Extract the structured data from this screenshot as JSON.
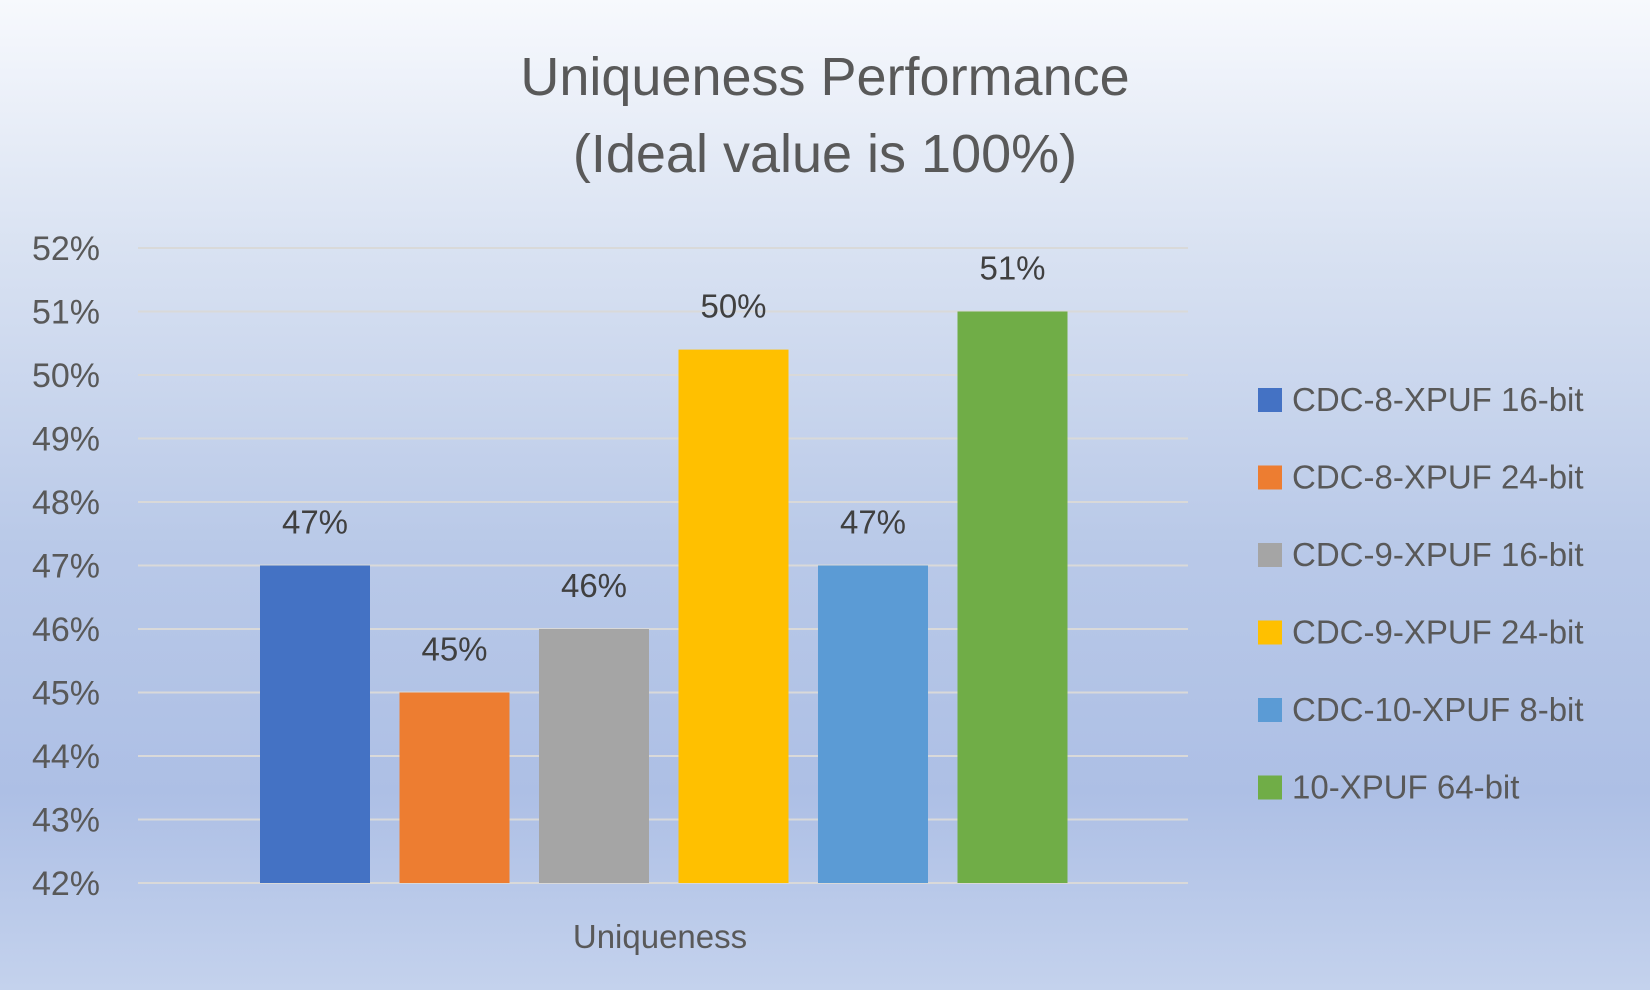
{
  "chart_data": {
    "type": "bar",
    "title": "Uniqueness Performance",
    "subtitle": "(Ideal value is 100%)",
    "categories": [
      "Uniqueness"
    ],
    "ylim": [
      42,
      52
    ],
    "y_ticks": [
      "42%",
      "43%",
      "44%",
      "45%",
      "46%",
      "47%",
      "48%",
      "49%",
      "50%",
      "51%",
      "52%"
    ],
    "grid": true,
    "legend_position": "right",
    "series": [
      {
        "name": "CDC-8-XPUF 16-bit",
        "values": [
          47
        ],
        "label": "47%",
        "color": "#4472c4"
      },
      {
        "name": "CDC-8-XPUF 24-bit",
        "values": [
          45
        ],
        "label": "45%",
        "color": "#ed7d31"
      },
      {
        "name": "CDC-9-XPUF 16-bit",
        "values": [
          46
        ],
        "label": "46%",
        "color": "#a5a5a5"
      },
      {
        "name": "CDC-9-XPUF 24-bit",
        "values": [
          50.4
        ],
        "label": "50%",
        "color": "#ffc000"
      },
      {
        "name": "CDC-10-XPUF 8-bit",
        "values": [
          47
        ],
        "label": "47%",
        "color": "#5b9bd5"
      },
      {
        "name": "10-XPUF 64-bit",
        "values": [
          51
        ],
        "label": "51%",
        "color": "#70ad47"
      }
    ]
  }
}
